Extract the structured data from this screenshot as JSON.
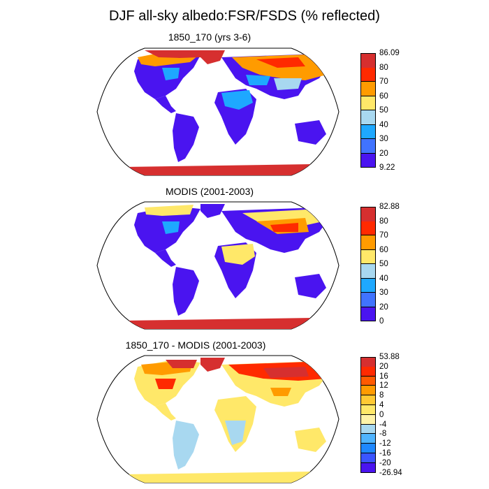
{
  "title": "DJF all-sky albedo:FSR/FSDS (% reflected)",
  "panels": [
    {
      "title": "1850_170 (yrs 3-6)",
      "colorbar": {
        "labels": [
          "86.09",
          "80",
          "70",
          "60",
          "50",
          "40",
          "30",
          "20",
          "9.22"
        ],
        "colors": [
          "#d62f2f",
          "#ff2a00",
          "#ff9b00",
          "#ffe869",
          "#a8d8f0",
          "#1ea8ff",
          "#4073ff",
          "#4a14f0"
        ]
      }
    },
    {
      "title": "MODIS (2001-2003)",
      "colorbar": {
        "labels": [
          "82.88",
          "80",
          "70",
          "60",
          "50",
          "40",
          "30",
          "20",
          "0"
        ],
        "colors": [
          "#d62f2f",
          "#ff2a00",
          "#ff9b00",
          "#ffe869",
          "#a8d8f0",
          "#1ea8ff",
          "#4073ff",
          "#4a14f0"
        ]
      }
    },
    {
      "title": "1850_170 - MODIS (2001-2003)",
      "colorbar": {
        "labels": [
          "53.88",
          "20",
          "16",
          "12",
          "8",
          "4",
          "0",
          "-4",
          "-8",
          "-12",
          "-16",
          "-20",
          "-26.94"
        ],
        "colors": [
          "#d62f2f",
          "#ff2a00",
          "#ff5a00",
          "#ff9b00",
          "#ffc933",
          "#ffe869",
          "#fff3a8",
          "#a8d8f0",
          "#4fb4ff",
          "#1e88ff",
          "#3a55ff",
          "#4a14f0"
        ]
      }
    }
  ]
}
